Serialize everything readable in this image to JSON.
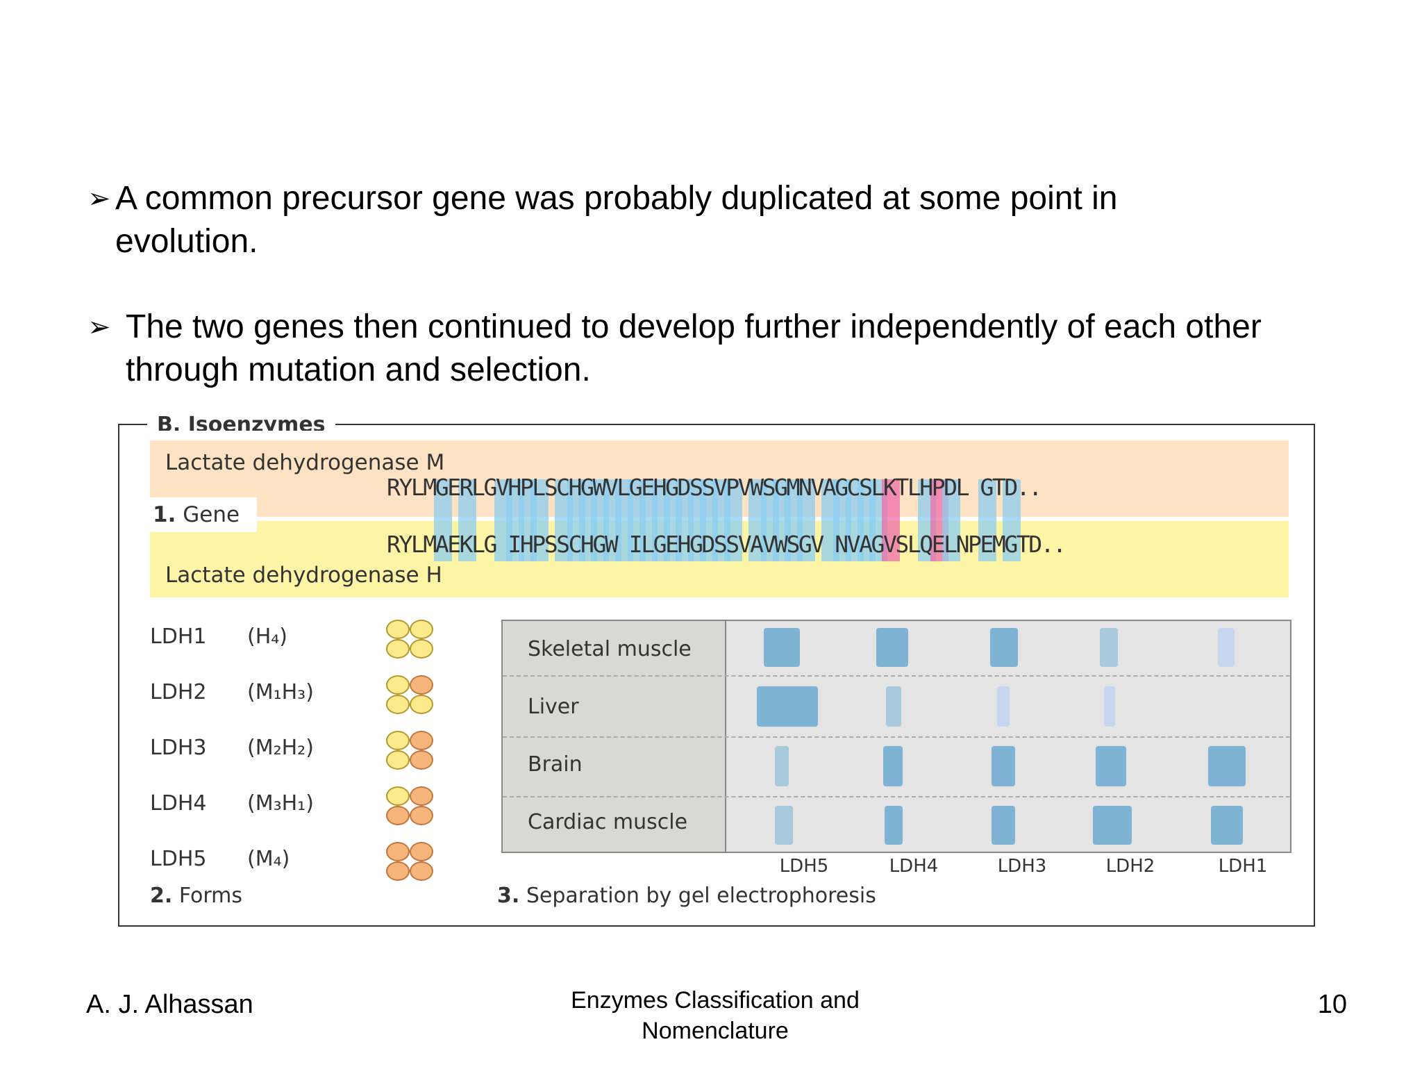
{
  "bullets": [
    {
      "arrow": "➢",
      "text": "A common precursor gene was probably duplicated at some point in evolution."
    },
    {
      "arrow": "➢",
      "text": "The two genes then continued to develop further independently of each other through mutation and selection."
    }
  ],
  "figure": {
    "title": "B. Isoenzymes",
    "gene": {
      "label_num": "1.",
      "label": "Gene",
      "m_name": "Lactate dehydrogenase M",
      "h_name": "Lactate dehydrogenase H",
      "m_seq": "RYLMGERLGVHPLSCHGWVLGEHGDSSVPVWSGMNVAGCSLKTLHPDL GTD..",
      "h_seq": "RYLMAEKLG IHPSSCHGW ILGEHGDSSVAVWSGV NVAGVSLQELNPEMGTD.."
    },
    "forms": [
      {
        "name": "LDH1",
        "comp": "(H₄)",
        "subunits": [
          "H",
          "H",
          "H",
          "H"
        ]
      },
      {
        "name": "LDH2",
        "comp": "(M₁H₃)",
        "subunits": [
          "H",
          "M",
          "H",
          "H"
        ]
      },
      {
        "name": "LDH3",
        "comp": "(M₂H₂)",
        "subunits": [
          "H",
          "M",
          "H",
          "M"
        ]
      },
      {
        "name": "LDH4",
        "comp": "(M₃H₁)",
        "subunits": [
          "H",
          "M",
          "M",
          "M"
        ]
      },
      {
        "name": "LDH5",
        "comp": "(M₄)",
        "subunits": [
          "M",
          "M",
          "M",
          "M"
        ]
      }
    ],
    "forms_caption_num": "2.",
    "forms_caption": "Forms",
    "gel": {
      "caption_num": "3.",
      "caption": "Separation by gel electrophoresis",
      "tissues": [
        "Skeletal muscle",
        "Liver",
        "Brain",
        "Cardiac muscle"
      ],
      "lanes": [
        "LDH5",
        "LDH4",
        "LDH3",
        "LDH2",
        "LDH1"
      ]
    },
    "colors": {
      "highlight_blue": "#8ccdf0",
      "highlight_pink": "#ee6ea8",
      "m_band": "#fde3c4",
      "h_band": "#fdf4a6",
      "gel_band": "#7fb3d4"
    }
  },
  "footer": {
    "author": "A. J. Alhassan",
    "title": "Enzymes Classification and Nomenclature",
    "page": "10"
  }
}
